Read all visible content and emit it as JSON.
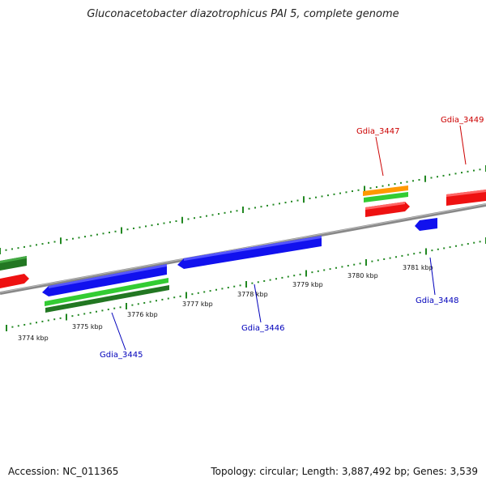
{
  "title": "Gluconacetobacter diazotrophicus PAI 5, complete genome",
  "footer": {
    "accession": "Accession: NC_011365",
    "summary": "Topology: circular; Length: 3,887,492 bp; Genes: 3,539"
  },
  "colors": {
    "forward_cds": "#ee1111",
    "reverse_cds": "#1111ee",
    "rna": "#ff9900",
    "green": "#33aa33",
    "dark_green": "#227722",
    "backbone": "#888888",
    "tick": "#228822",
    "forward_label": "#cc0000",
    "reverse_label": "#0000bb"
  },
  "ticks": [
    "3774 kbp",
    "3775 kbp",
    "3776 kbp",
    "3777 kbp",
    "3778 kbp",
    "3779 kbp",
    "3780 kbp",
    "3781 kbp"
  ],
  "genes": [
    {
      "label": "Gdia_3445",
      "strand": "reverse"
    },
    {
      "label": "Gdia_3446",
      "strand": "reverse"
    },
    {
      "label": "Gdia_3447",
      "strand": "forward"
    },
    {
      "label": "Gdia_3448",
      "strand": "reverse"
    },
    {
      "label": "Gdia_3449",
      "strand": "forward"
    }
  ]
}
